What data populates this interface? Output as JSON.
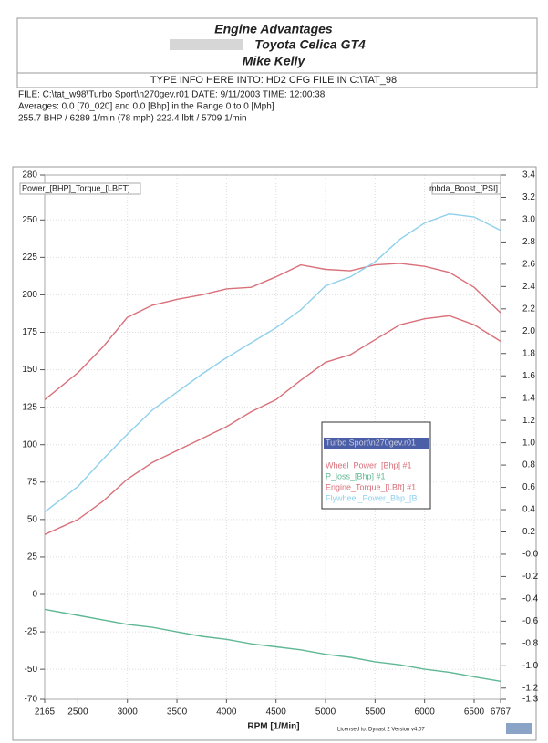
{
  "header": {
    "title": "Engine Advantages",
    "vehicle": "Toyota Celica GT4",
    "owner": "Mike Kelly",
    "info_line": "TYPE INFO HERE INTO: HD2 CFG FILE IN C:\\TAT_98"
  },
  "file_info": [
    "FILE: C:\\tat_w98\\Turbo Sport\\n270gev.r01  DATE: 9/11/2003  TIME: 12:00:38",
    "Averages:  0.0 [70_020]  and  0.0 [Bhp]  in the Range  0  to  0  [Mph]",
    "255.7 BHP / 6289 1/min (78 mph)    222.4 lbft / 5709 1/min"
  ],
  "chart_data": {
    "type": "line",
    "y_label": "Power_[BHP]_Torque_[LBFT]",
    "y2_label": "mbda_Boost_[PSI]",
    "x_label": "RPM  [1/Min]",
    "footer": "Licensed to: Dynast 2   Version v4.07",
    "legend_title": "Turbo Sport\\n270gev.r01",
    "x": [
      2165,
      2500,
      2750,
      3000,
      3250,
      3500,
      3750,
      4000,
      4250,
      4500,
      4750,
      5000,
      5250,
      5500,
      5750,
      6000,
      6250,
      6500,
      6767
    ],
    "series": [
      {
        "name": "Wheel_Power_[Bhp] #1",
        "color": "#d9707a",
        "values": [
          40,
          50,
          62,
          77,
          88,
          96,
          104,
          112,
          122,
          130,
          143,
          155,
          160,
          170,
          180,
          184,
          186,
          180,
          169
        ]
      },
      {
        "name": "P_loss_[Bhp] #1",
        "color": "#5fb894",
        "values": [
          -10,
          -14,
          -17,
          -20,
          -22,
          -25,
          -28,
          -30,
          -33,
          -35,
          -37,
          -40,
          -42,
          -45,
          -47,
          -50,
          -52,
          -55,
          -58
        ]
      },
      {
        "name": "Engine_Torque_[LBft] #1",
        "color": "#d9707a",
        "values": [
          130,
          148,
          165,
          185,
          193,
          197,
          200,
          204,
          205,
          212,
          220,
          217,
          216,
          220,
          221,
          219,
          215,
          205,
          188
        ]
      },
      {
        "name": "Flywheel_Power_Bhp_[B",
        "color": "#8fd0ec",
        "values": [
          55,
          72,
          90,
          107,
          123,
          135,
          147,
          158,
          168,
          178,
          190,
          206,
          212,
          222,
          237,
          248,
          254,
          252,
          243
        ]
      }
    ],
    "xlim": [
      2165,
      6767
    ],
    "xticks": [
      2165,
      2500,
      3000,
      3500,
      4000,
      4500,
      5000,
      5500,
      6000,
      6500,
      6767
    ],
    "ylim": [
      -70,
      280
    ],
    "yticks": [
      280,
      250,
      225,
      200,
      175,
      150,
      125,
      100,
      75,
      50,
      25,
      0,
      -25,
      -50,
      -70
    ],
    "y2lim": [
      -1.3,
      3.4
    ],
    "y2ticks": [
      3.4,
      3.2,
      {
        "value": 3,
        "label": "3.0"
      },
      2.8,
      2.6,
      2.4,
      2.2,
      {
        "value": 2,
        "label": "2.0"
      },
      1.8,
      1.6,
      1.4,
      1.2,
      {
        "value": 1,
        "label": "1.0"
      },
      0.8,
      0.6,
      0.4,
      0.2,
      {
        "value": 0,
        "label": "-0.0"
      },
      -0.2,
      -0.4,
      -0.6,
      -0.8,
      {
        "value": -1,
        "label": "-1.0"
      },
      -1.2,
      -1.3
    ],
    "grid": true
  }
}
